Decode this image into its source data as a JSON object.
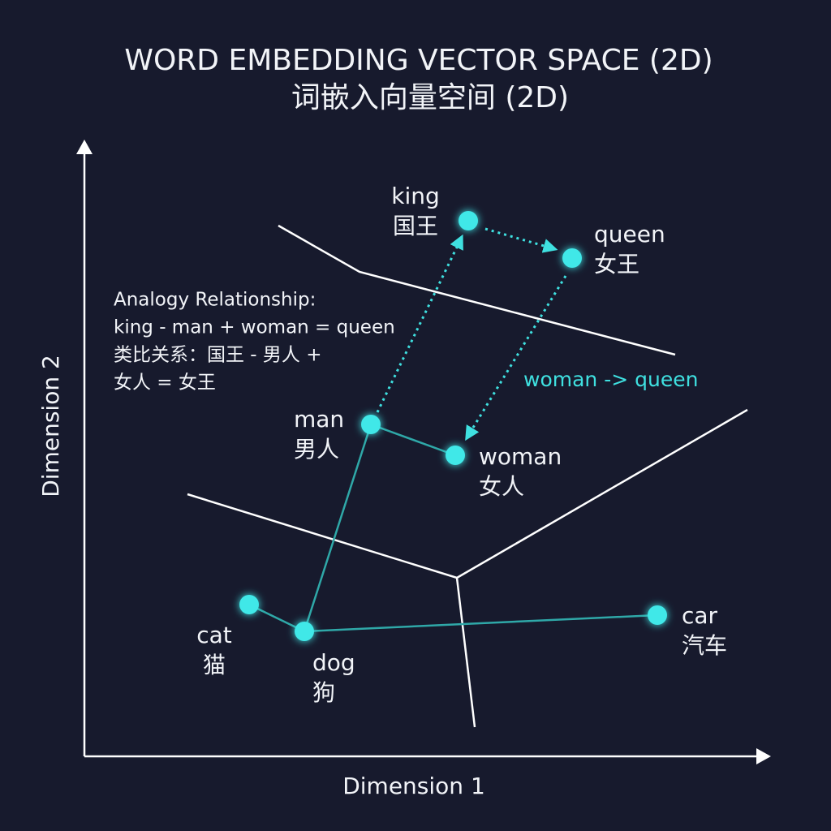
{
  "title": "WORD EMBEDDING VECTOR SPACE (2D)",
  "subtitle": "词嵌入向量空间 (2D)",
  "x_axis_label": "Dimension 1",
  "y_axis_label": "Dimension 2",
  "annotation": {
    "lines": [
      "Analogy Relationship:",
      "king - man + woman = queen",
      "类比关系：国王 - 男人 +",
      "女人 = 女王"
    ]
  },
  "arrow_label": "woman -> queen",
  "nodes": [
    {
      "en": "king",
      "zh": "国王"
    },
    {
      "en": "queen",
      "zh": "女王"
    },
    {
      "en": "man",
      "zh": "男人"
    },
    {
      "en": "woman",
      "zh": "女人"
    },
    {
      "en": "cat",
      "zh": "猫"
    },
    {
      "en": "dog",
      "zh": "狗"
    },
    {
      "en": "car",
      "zh": "汽车"
    }
  ]
}
